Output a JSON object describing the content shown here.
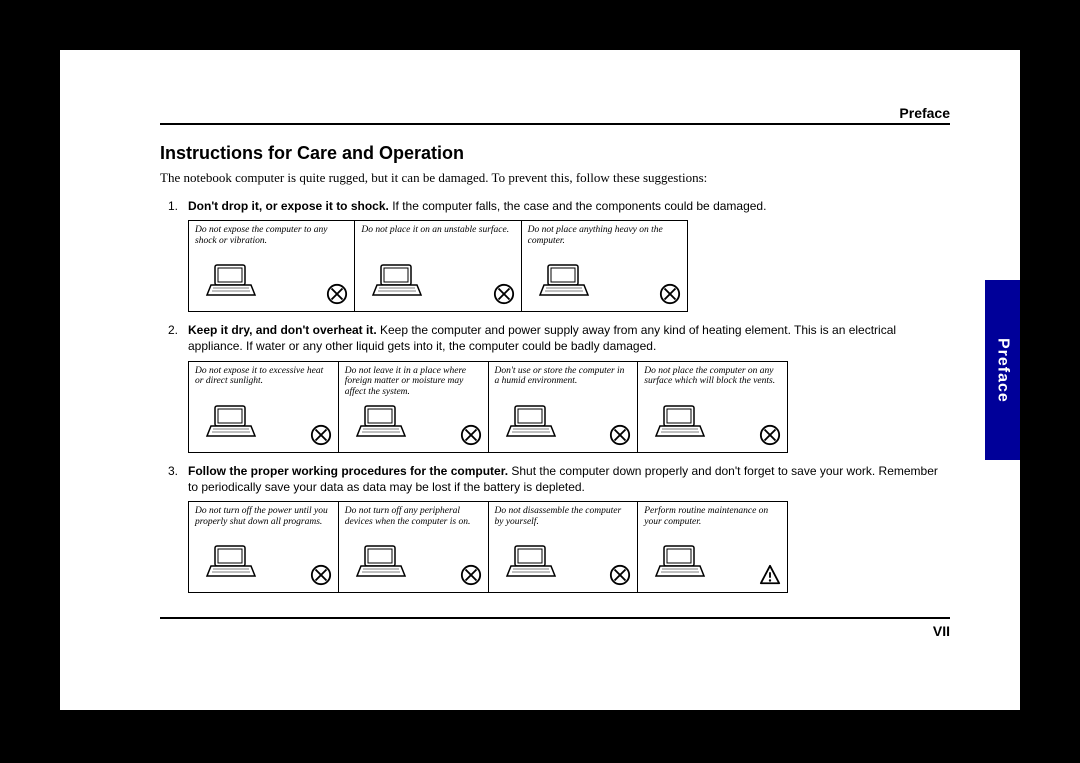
{
  "header_label": "Preface",
  "side_tab": "Preface",
  "title": "Instructions for Care and Operation",
  "intro": "The notebook computer is quite rugged, but it can be damaged. To prevent this, follow these suggestions:",
  "items": [
    {
      "num": "1.",
      "lead": "Don't drop it, or expose it to shock.",
      "rest": " If the computer falls, the case and the components could be damaged.",
      "cells": [
        {
          "caption": "Do not expose the computer to any shock or vibration.",
          "symbol": "x"
        },
        {
          "caption": "Do not place it on an unstable surface.",
          "symbol": "x"
        },
        {
          "caption": "Do not place anything heavy on the computer.",
          "symbol": "x"
        }
      ],
      "cols": 3
    },
    {
      "num": "2.",
      "lead": "Keep it dry, and don't overheat it.",
      "rest": " Keep the computer and power supply away from any kind of heating element. This is an electrical appliance. If water or any other liquid gets into it, the computer could be badly damaged.",
      "cells": [
        {
          "caption": "Do not expose it to excessive heat or direct sunlight.",
          "symbol": "x"
        },
        {
          "caption": "Do not leave it in a place where foreign matter or moisture may affect the system.",
          "symbol": "x"
        },
        {
          "caption": "Don't use or store the computer in a humid environment.",
          "symbol": "x"
        },
        {
          "caption": "Do not place the computer on any surface which will block the vents.",
          "symbol": "x"
        }
      ],
      "cols": 4
    },
    {
      "num": "3.",
      "lead": "Follow the proper working procedures for the computer.",
      "rest": " Shut the computer down properly and don't forget to save your work. Remember to periodically save your data as data may be lost if the battery is depleted.",
      "cells": [
        {
          "caption": "Do not turn off the power until you properly shut down all programs.",
          "symbol": "x"
        },
        {
          "caption": "Do not turn off any peripheral devices when the computer is on.",
          "symbol": "x"
        },
        {
          "caption": "Do not disassemble the computer by yourself.",
          "symbol": "x"
        },
        {
          "caption": "Perform routine maintenance on your computer.",
          "symbol": "warn"
        }
      ],
      "cols": 4
    }
  ],
  "page_number": "VII",
  "colors": {
    "tab_bg": "#000099",
    "rule": "#000000"
  }
}
